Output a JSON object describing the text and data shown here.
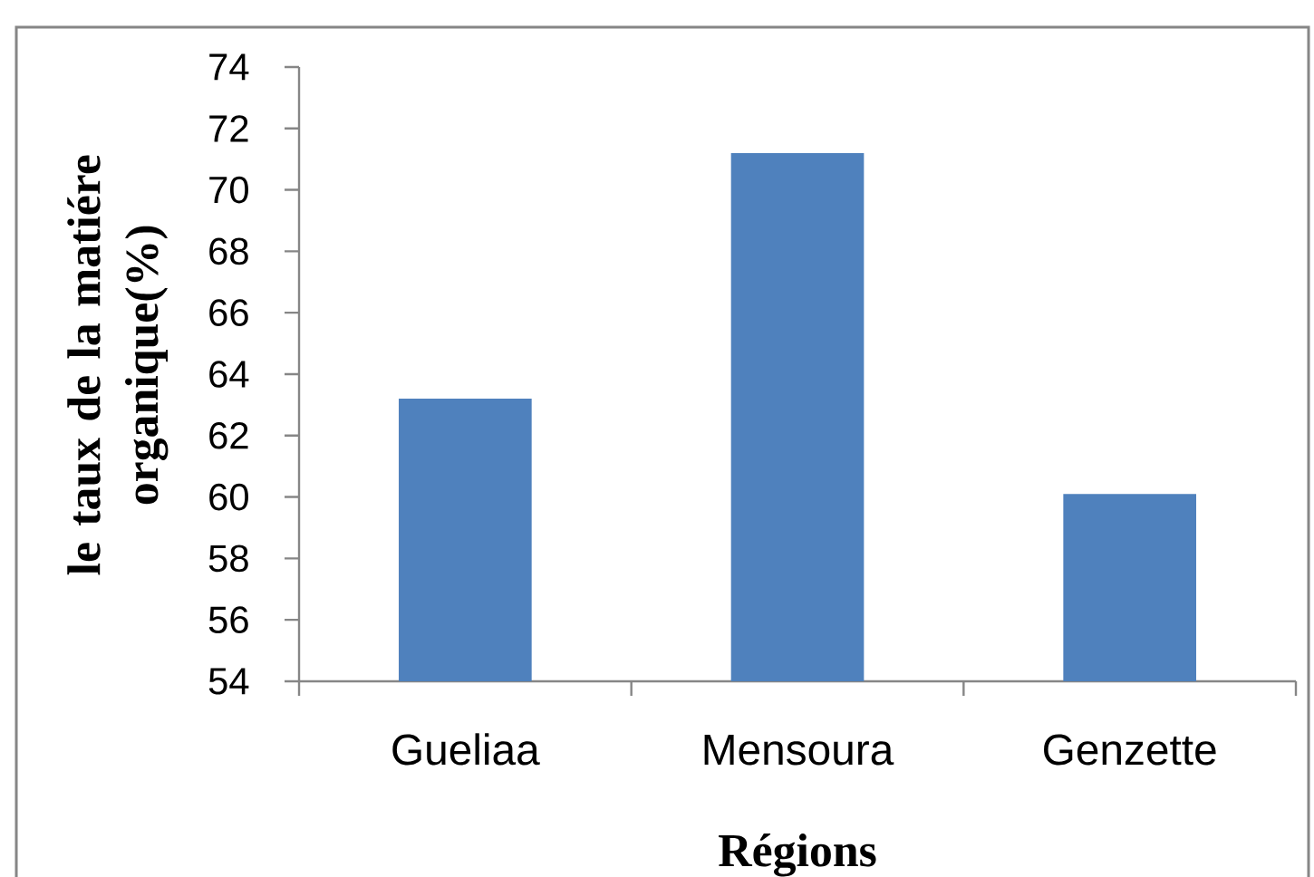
{
  "chart_data": {
    "type": "bar",
    "categories": [
      "Gueliaa",
      "Mensoura",
      "Genzette"
    ],
    "values": [
      63.2,
      71.2,
      60.1
    ],
    "color": "#4f81bd",
    "xlabel": "Régions",
    "ylabel": "le taux de la matiére organique(%)",
    "ylim": [
      54,
      74
    ],
    "yticks": [
      54,
      56,
      58,
      60,
      62,
      64,
      66,
      68,
      70,
      72,
      74
    ]
  }
}
